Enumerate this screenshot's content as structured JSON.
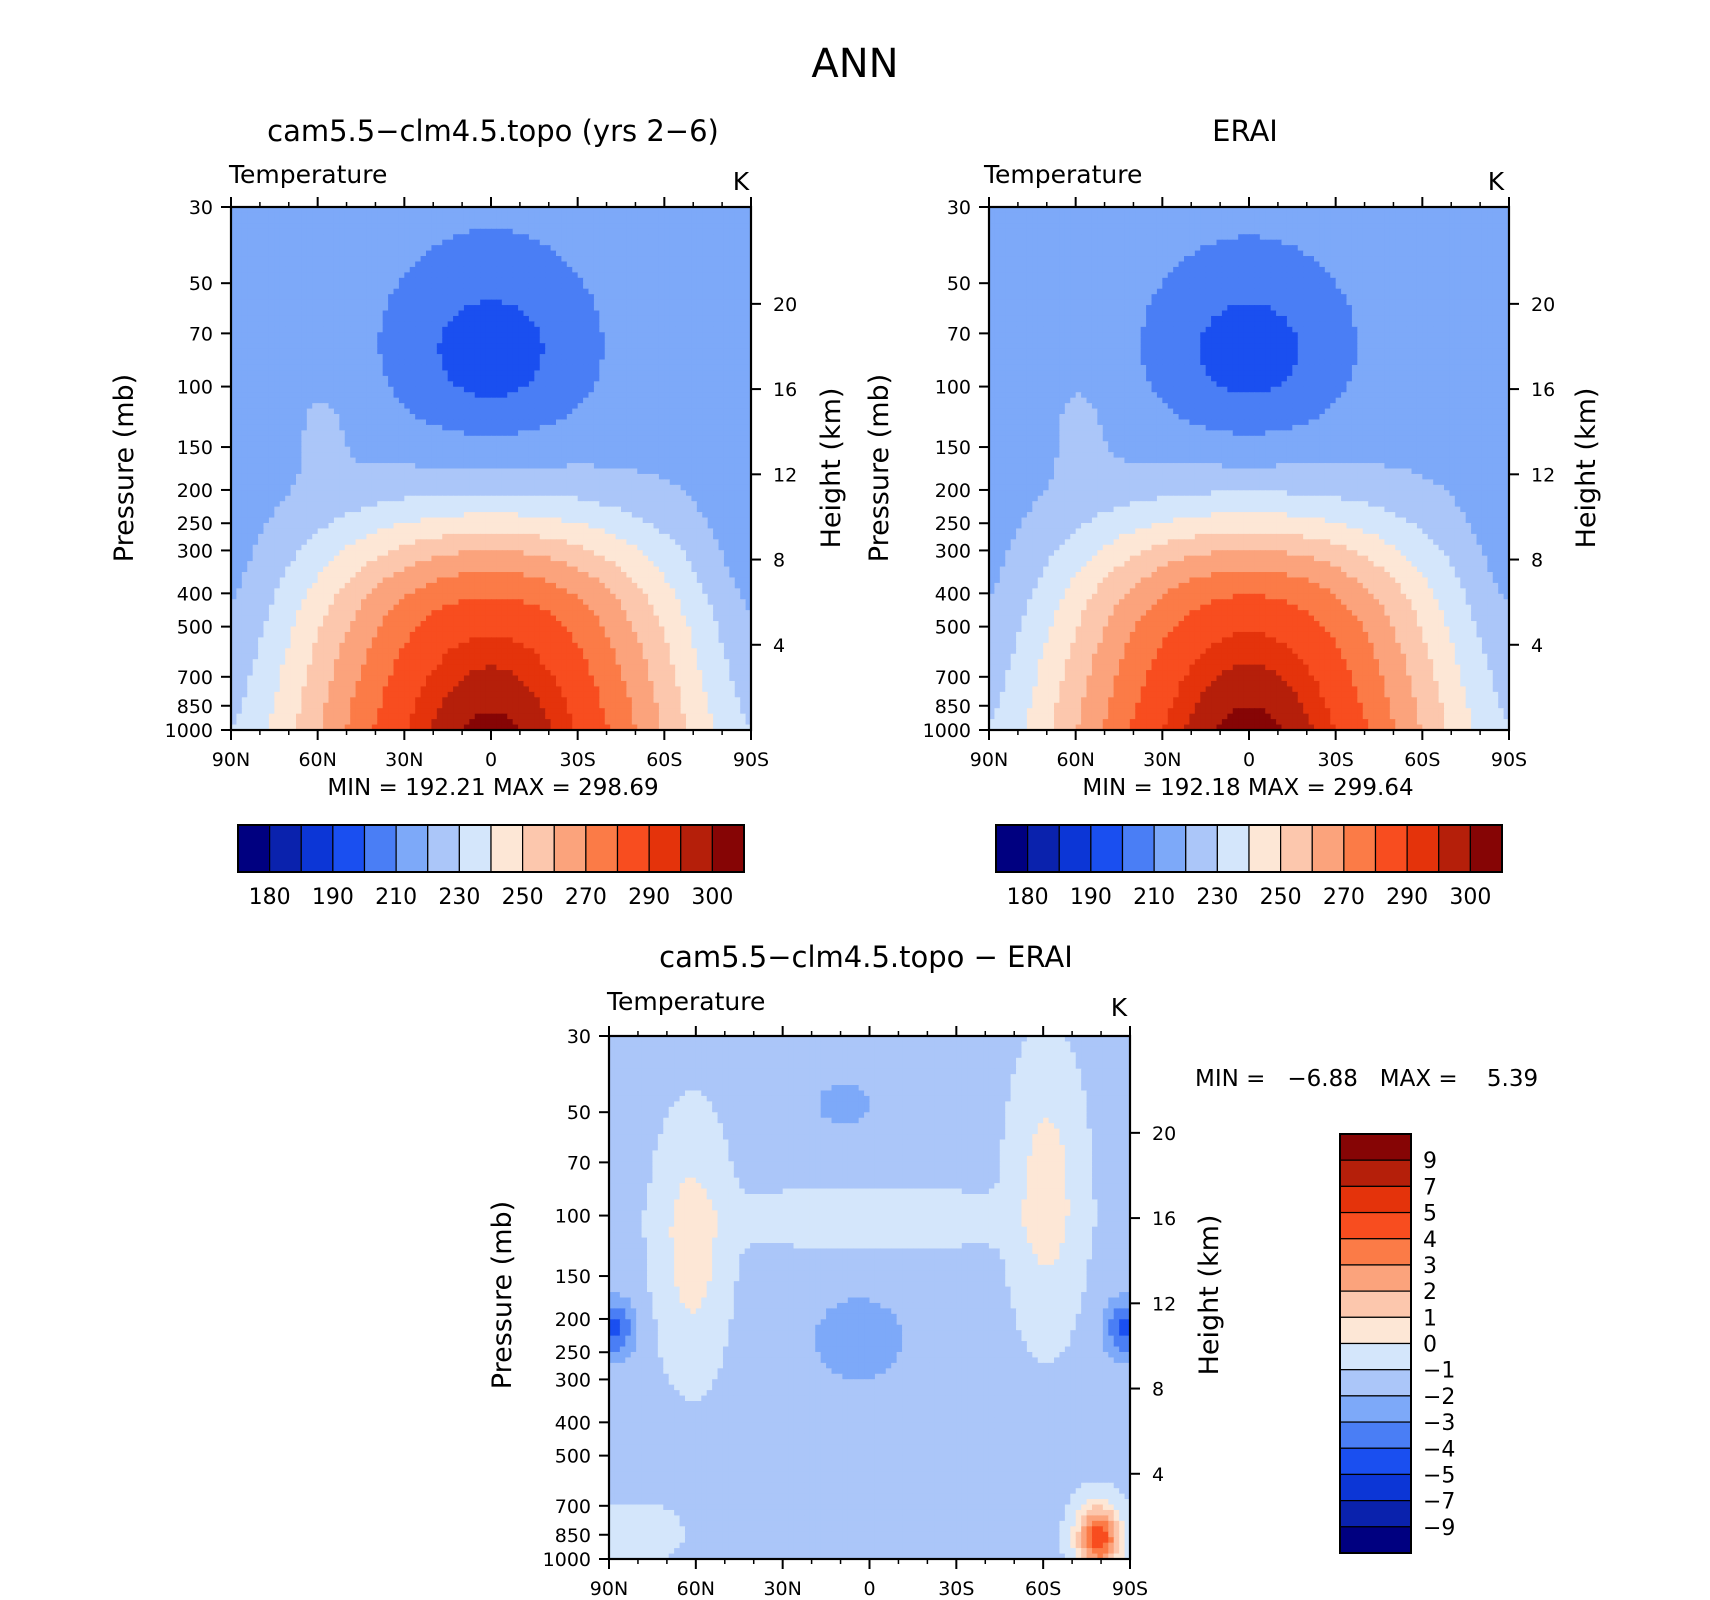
{
  "page_title": "ANN",
  "colors": {
    "temp_scale": [
      "#000080",
      "#0a22ad",
      "#0c36d6",
      "#1a4ff0",
      "#4a7ef5",
      "#7da9f9",
      "#abc6f9",
      "#d4e6fb",
      "#fde7d6",
      "#fcc7ad",
      "#fba37c",
      "#fb7b47",
      "#f84d1f",
      "#e4330b",
      "#b51f0a",
      "#860505"
    ],
    "diff_scale": [
      "#000080",
      "#0a22ad",
      "#0c36d6",
      "#1a4ff0",
      "#4a7ef5",
      "#7da9f9",
      "#abc6f9",
      "#d4e6fb",
      "#fde7d6",
      "#fcc7ad",
      "#fba37c",
      "#fb7b47",
      "#f84d1f",
      "#e4330b",
      "#b51f0a",
      "#860505"
    ]
  },
  "chart_data": [
    {
      "type": "heatmap",
      "title": "cam5.5−clm4.5.topo (yrs 2−6)",
      "subtitle": "Temperature",
      "units": "K",
      "xlabel": "",
      "ylabel": "Pressure (mb)",
      "ylabel_right": "Height (km)",
      "x_ticks": [
        "90N",
        "60N",
        "30N",
        "0",
        "30S",
        "60S",
        "90S"
      ],
      "y_ticks": [
        "30",
        "50",
        "70",
        "100",
        "150",
        "200",
        "250",
        "300",
        "400",
        "500",
        "700",
        "850",
        "1000"
      ],
      "y_scale": "log",
      "ylim": [
        1000,
        30
      ],
      "right_ticks": [
        "20",
        "16",
        "12",
        "8",
        "4"
      ],
      "stats": "MIN = 192.21   MAX = 298.69",
      "min": 192.21,
      "max": 298.69,
      "colorbar_labels": [
        "180",
        "190",
        "210",
        "230",
        "250",
        "270",
        "290",
        "300"
      ]
    },
    {
      "type": "heatmap",
      "title": "ERAI",
      "subtitle": "Temperature",
      "units": "K",
      "xlabel": "",
      "ylabel": "Pressure (mb)",
      "ylabel_right": "Height (km)",
      "x_ticks": [
        "90N",
        "60N",
        "30N",
        "0",
        "30S",
        "60S",
        "90S"
      ],
      "y_ticks": [
        "30",
        "50",
        "70",
        "100",
        "150",
        "200",
        "250",
        "300",
        "400",
        "500",
        "700",
        "850",
        "1000"
      ],
      "y_scale": "log",
      "ylim": [
        1000,
        30
      ],
      "right_ticks": [
        "20",
        "16",
        "12",
        "8",
        "4"
      ],
      "stats": "MIN = 192.18   MAX = 299.64",
      "min": 192.18,
      "max": 299.64,
      "colorbar_labels": [
        "180",
        "190",
        "210",
        "230",
        "250",
        "270",
        "290",
        "300"
      ]
    },
    {
      "type": "heatmap",
      "title": "cam5.5−clm4.5.topo − ERAI",
      "subtitle": "Temperature",
      "units": "K",
      "xlabel": "",
      "ylabel": "Pressure (mb)",
      "ylabel_right": "Height (km)",
      "x_ticks": [
        "90N",
        "60N",
        "30N",
        "0",
        "30S",
        "60S",
        "90S"
      ],
      "y_ticks": [
        "30",
        "50",
        "70",
        "100",
        "150",
        "200",
        "250",
        "300",
        "400",
        "500",
        "700",
        "850",
        "1000"
      ],
      "y_scale": "log",
      "ylim": [
        1000,
        30
      ],
      "right_ticks": [
        "20",
        "16",
        "12",
        "8",
        "4"
      ],
      "stats": "MIN =   −6.88   MAX =    5.39",
      "min": -6.88,
      "max": 5.39,
      "colorbar_labels": [
        "9",
        "7",
        "5",
        "4",
        "3",
        "2",
        "1",
        "0",
        "−1",
        "−2",
        "−3",
        "−4",
        "−5",
        "−7",
        "−9"
      ]
    }
  ]
}
